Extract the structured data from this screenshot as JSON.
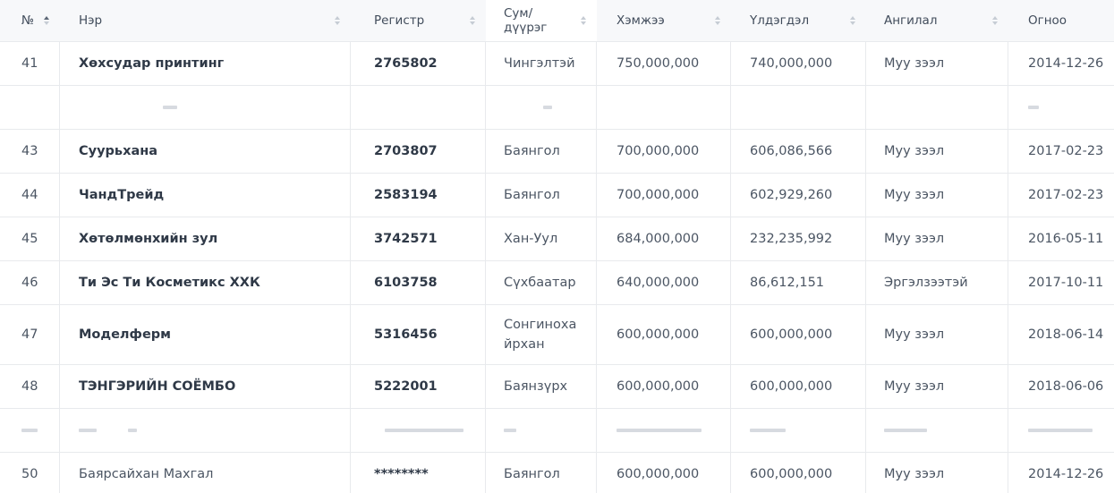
{
  "table": {
    "sort_state": {
      "column": "№",
      "direction": "asc"
    },
    "colors": {
      "header_bg": "#f7f8fa",
      "highlighted_header_bg": "#ffffff",
      "border": "#e8eaed",
      "text_primary": "#2f3947",
      "text_secondary": "#4b5563",
      "sort_icon": "#c6ccd4",
      "sort_icon_active": "#5d6776"
    },
    "columns": [
      {
        "label": "№",
        "sortable": true,
        "sorted": "asc"
      },
      {
        "label": "Нэр",
        "sortable": true
      },
      {
        "label": "Регистр",
        "sortable": true
      },
      {
        "label": "Сум/дүүрэг",
        "sortable": true,
        "highlighted": true
      },
      {
        "label": "Хэмжээ",
        "sortable": true
      },
      {
        "label": "Үлдэгдэл",
        "sortable": true
      },
      {
        "label": "Ангилал",
        "sortable": true
      },
      {
        "label": "Огноо",
        "sortable": false
      }
    ],
    "rows": [
      {
        "num": "41",
        "name": "Хөхсудар принтинг",
        "register": "2765802",
        "district": "Чингэлтэй",
        "amount": "750,000,000",
        "balance": "740,000,000",
        "category": "Муу зээл",
        "date": "2014-12-26"
      },
      {
        "partial": true,
        "num": "",
        "name": "",
        "register": "",
        "district": "",
        "amount": "",
        "balance": "",
        "category": "",
        "date": "",
        "smudges": {
          "name": [
            [
              16,
              94
            ]
          ],
          "district": [
            [
              10,
              44
            ]
          ],
          "date": [
            [
              12,
              0
            ]
          ]
        }
      },
      {
        "num": "43",
        "name": "Суурьхана",
        "register": "2703807",
        "district": "Баянгол",
        "amount": "700,000,000",
        "balance": "606,086,566",
        "category": "Муу зээл",
        "date": "2017-02-23"
      },
      {
        "num": "44",
        "name": "ЧандТрейд",
        "register": "2583194",
        "district": "Баянгол",
        "amount": "700,000,000",
        "balance": "602,929,260",
        "category": "Муу зээл",
        "date": "2017-02-23"
      },
      {
        "num": "45",
        "name": "Хөтөлмөнхийн зул",
        "register": "3742571",
        "district": "Хан-Уул",
        "amount": "684,000,000",
        "balance": "232,235,992",
        "category": "Муу зээл",
        "date": "2016-05-11"
      },
      {
        "num": "46",
        "name": "Ти Эс Ти Косметикс ХХК",
        "register": "6103758",
        "district": "Сүхбаатар",
        "amount": "640,000,000",
        "balance": "86,612,151",
        "category": "Эргэлзээтэй",
        "date": "2017-10-11"
      },
      {
        "num": "47",
        "name": "Моделферм",
        "register": "5316456",
        "district": "Сонгиноха йрхан",
        "amount": "600,000,000",
        "balance": "600,000,000",
        "category": "Муу зээл",
        "date": "2018-06-14"
      },
      {
        "num": "48",
        "name": "ТЭНГЭРИЙН СОЁМБО",
        "register": "5222001",
        "district": "Баянзүрх",
        "amount": "600,000,000",
        "balance": "600,000,000",
        "category": "Муу зээл",
        "date": "2018-06-06"
      },
      {
        "partial": true,
        "num": "",
        "name": "",
        "register": "",
        "district": "",
        "amount": "",
        "balance": "",
        "category": "",
        "date": "",
        "smudges": {
          "num": [
            [
              18,
              0
            ]
          ],
          "name": [
            [
              20,
              0
            ],
            [
              10,
              35
            ]
          ],
          "register": [
            [
              88,
              12
            ]
          ],
          "district": [
            [
              14,
              0
            ]
          ],
          "amount": [
            [
              95,
              0
            ]
          ],
          "balance": [
            [
              40,
              0
            ]
          ],
          "category": [
            [
              48,
              0
            ]
          ],
          "date": [
            [
              72,
              0
            ]
          ]
        }
      },
      {
        "num": "50",
        "name": "Баярсайхан Махгал",
        "register": "********",
        "district": "Баянгол",
        "amount": "600,000,000",
        "balance": "600,000,000",
        "category": "Муу зээл",
        "date": "2014-12-26",
        "plain_name": true
      }
    ]
  }
}
